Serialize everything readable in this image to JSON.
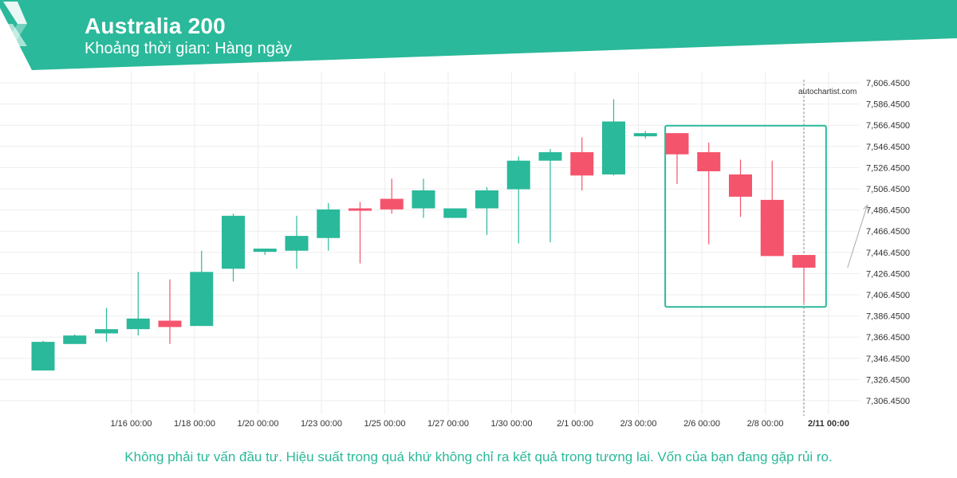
{
  "header": {
    "title": "Australia 200",
    "subtitle": "Khoảng thời gian: Hàng ngày",
    "brand_color": "#2ab99a"
  },
  "watermark": "autochartist.com",
  "disclaimer": "Không phải tư vấn đầu tư. Hiệu suất trong quá khứ không chỉ ra kết quả trong tương lai. Vốn của bạn đang gặp rủi ro.",
  "colors": {
    "up": "#2ab99a",
    "down": "#f5546d",
    "grid": "#eeeeee",
    "pattern_box": "#2ab99a",
    "projection": "#aaaaaa"
  },
  "chart_data": {
    "type": "candlestick",
    "y_ticks": [
      "7,606.4500",
      "7,586.4500",
      "7,566.4500",
      "7,546.4500",
      "7,526.4500",
      "7,506.4500",
      "7,486.4500",
      "7,466.4500",
      "7,446.4500",
      "7,426.4500",
      "7,406.4500",
      "7,386.4500",
      "7,366.4500",
      "7,346.4500",
      "7,326.4500",
      "7,306.4500"
    ],
    "y_range": [
      7296,
      7616
    ],
    "x_ticks": [
      {
        "label": "1/16 00:00",
        "index": 2
      },
      {
        "label": "1/18 00:00",
        "index": 4
      },
      {
        "label": "1/20 00:00",
        "index": 6
      },
      {
        "label": "1/23 00:00",
        "index": 8
      },
      {
        "label": "1/25 00:00",
        "index": 10
      },
      {
        "label": "1/27 00:00",
        "index": 12
      },
      {
        "label": "1/30 00:00",
        "index": 14
      },
      {
        "label": "2/1 00:00",
        "index": 16
      },
      {
        "label": "2/3 00:00",
        "index": 18
      },
      {
        "label": "2/6 00:00",
        "index": 20
      },
      {
        "label": "2/8 00:00",
        "index": 22
      },
      {
        "label": "2/11 00:00",
        "index": 24,
        "bold": true
      }
    ],
    "candles": [
      {
        "o": 7335,
        "h": 7363,
        "l": 7335,
        "c": 7362
      },
      {
        "o": 7360,
        "h": 7369,
        "l": 7360,
        "c": 7368
      },
      {
        "o": 7370,
        "h": 7394,
        "l": 7362,
        "c": 7374
      },
      {
        "o": 7374,
        "h": 7428,
        "l": 7368,
        "c": 7384
      },
      {
        "o": 7382,
        "h": 7421,
        "l": 7360,
        "c": 7376
      },
      {
        "o": 7377,
        "h": 7448,
        "l": 7377,
        "c": 7428
      },
      {
        "o": 7431,
        "h": 7483,
        "l": 7419,
        "c": 7481
      },
      {
        "o": 7447,
        "h": 7450,
        "l": 7444,
        "c": 7450
      },
      {
        "o": 7448,
        "h": 7481,
        "l": 7431,
        "c": 7462
      },
      {
        "o": 7460,
        "h": 7493,
        "l": 7448,
        "c": 7487
      },
      {
        "o": 7488,
        "h": 7494,
        "l": 7436,
        "c": 7487
      },
      {
        "o": 7497,
        "h": 7516,
        "l": 7483,
        "c": 7487
      },
      {
        "o": 7488,
        "h": 7516,
        "l": 7479,
        "c": 7505
      },
      {
        "o": 7479,
        "h": 7488,
        "l": 7479,
        "c": 7488
      },
      {
        "o": 7488,
        "h": 7508,
        "l": 7463,
        "c": 7505
      },
      {
        "o": 7506,
        "h": 7537,
        "l": 7455,
        "c": 7533
      },
      {
        "o": 7533,
        "h": 7544,
        "l": 7456,
        "c": 7541
      },
      {
        "o": 7541,
        "h": 7555,
        "l": 7505,
        "c": 7519
      },
      {
        "o": 7520,
        "h": 7591,
        "l": 7519,
        "c": 7570
      },
      {
        "o": 7556,
        "h": 7561,
        "l": 7554,
        "c": 7559
      },
      {
        "o": 7559,
        "h": 7559,
        "l": 7511,
        "c": 7539
      },
      {
        "o": 7541,
        "h": 7550,
        "l": 7454,
        "c": 7523
      },
      {
        "o": 7520,
        "h": 7534,
        "l": 7480,
        "c": 7499
      },
      {
        "o": 7496,
        "h": 7533,
        "l": 7443,
        "c": 7443
      },
      {
        "o": 7444,
        "h": 7444,
        "l": 7399,
        "c": 7432
      }
    ],
    "pattern_box": {
      "x_from": 19.5,
      "x_to": 24.7,
      "y_high": 7566,
      "y_low": 7395
    },
    "projection": {
      "x_from": 25.0,
      "y_from": 7432,
      "x_to": 26.0,
      "y_to": 7491
    }
  }
}
